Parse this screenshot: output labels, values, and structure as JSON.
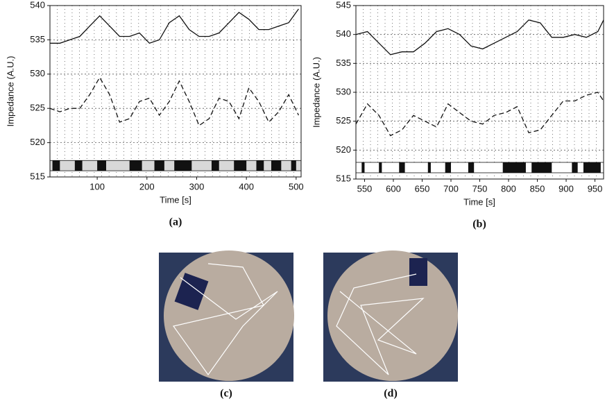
{
  "chart_data": [
    {
      "type": "line",
      "caption": "(a)",
      "xlabel": "Time [s]",
      "ylabel": "Impedance (A.U.)",
      "xlim": [
        5,
        510
      ],
      "xticks": [
        100,
        200,
        300,
        400,
        500
      ],
      "ylim": [
        515,
        540
      ],
      "yticks": [
        515,
        520,
        525,
        530,
        535,
        540
      ],
      "grid": true,
      "strip_color": "#d8d8d8",
      "x": [
        5,
        25,
        45,
        65,
        85,
        105,
        125,
        145,
        165,
        185,
        205,
        225,
        245,
        265,
        285,
        305,
        325,
        345,
        365,
        385,
        405,
        425,
        445,
        465,
        485,
        505
      ],
      "series": [
        {
          "color": "#111111",
          "style": "solid",
          "values": [
            534.5,
            534.5,
            535,
            535.5,
            537,
            538.5,
            537,
            535.5,
            535.5,
            536,
            534.5,
            535,
            537.5,
            538.5,
            536.5,
            535.5,
            535.5,
            536,
            537.5,
            539,
            538,
            536.5,
            536.5,
            537,
            537.5,
            539.5
          ]
        },
        {
          "color": "#111111",
          "style": "dashed",
          "values": [
            525,
            524.5,
            525,
            525,
            527,
            529.5,
            527,
            523,
            523.5,
            526,
            526.5,
            524,
            526,
            529,
            526,
            522.5,
            523.5,
            526.5,
            526,
            523.5,
            528,
            526,
            523,
            524.5,
            527,
            524
          ]
        }
      ],
      "activity": [
        [
          10,
          25
        ],
        [
          55,
          70
        ],
        [
          100,
          118
        ],
        [
          165,
          190
        ],
        [
          215,
          235
        ],
        [
          255,
          290
        ],
        [
          330,
          345
        ],
        [
          375,
          400
        ],
        [
          420,
          435
        ],
        [
          450,
          470
        ],
        [
          490,
          500
        ]
      ]
    },
    {
      "type": "line",
      "caption": "(b)",
      "xlabel": "Time [s]",
      "ylabel": "Impedance (A.U.)",
      "xlim": [
        535,
        965
      ],
      "xticks": [
        550,
        600,
        650,
        700,
        750,
        800,
        850,
        900,
        950
      ],
      "ylim": [
        515,
        545
      ],
      "yticks": [
        515,
        520,
        525,
        530,
        535,
        540,
        545
      ],
      "grid": true,
      "strip_color": "#ffffff",
      "x": [
        535,
        555,
        575,
        595,
        615,
        635,
        655,
        675,
        695,
        715,
        735,
        755,
        775,
        795,
        815,
        835,
        855,
        875,
        895,
        915,
        935,
        955,
        965
      ],
      "series": [
        {
          "color": "#111111",
          "style": "solid",
          "values": [
            540,
            540.5,
            538.5,
            536.5,
            537,
            537,
            538.5,
            540.5,
            541,
            540,
            538,
            537.5,
            538.5,
            539.5,
            540.5,
            542.5,
            542,
            539.5,
            539.5,
            540,
            539.5,
            540.5,
            542.5
          ]
        },
        {
          "color": "#111111",
          "style": "dashed",
          "values": [
            524.5,
            528,
            526,
            522.5,
            523.5,
            526,
            525,
            524,
            528,
            526.5,
            525,
            524.5,
            526,
            526.5,
            527.5,
            523,
            523.5,
            526,
            528.5,
            528.5,
            529.5,
            530,
            528.5
          ]
        }
      ],
      "activity": [
        [
          545,
          550
        ],
        [
          575,
          580
        ],
        [
          610,
          620
        ],
        [
          660,
          665
        ],
        [
          690,
          700
        ],
        [
          730,
          740
        ],
        [
          790,
          830
        ],
        [
          840,
          875
        ],
        [
          910,
          920
        ],
        [
          930,
          960
        ]
      ]
    }
  ],
  "images": [
    {
      "caption": "(c)"
    },
    {
      "caption": "(d)"
    }
  ]
}
